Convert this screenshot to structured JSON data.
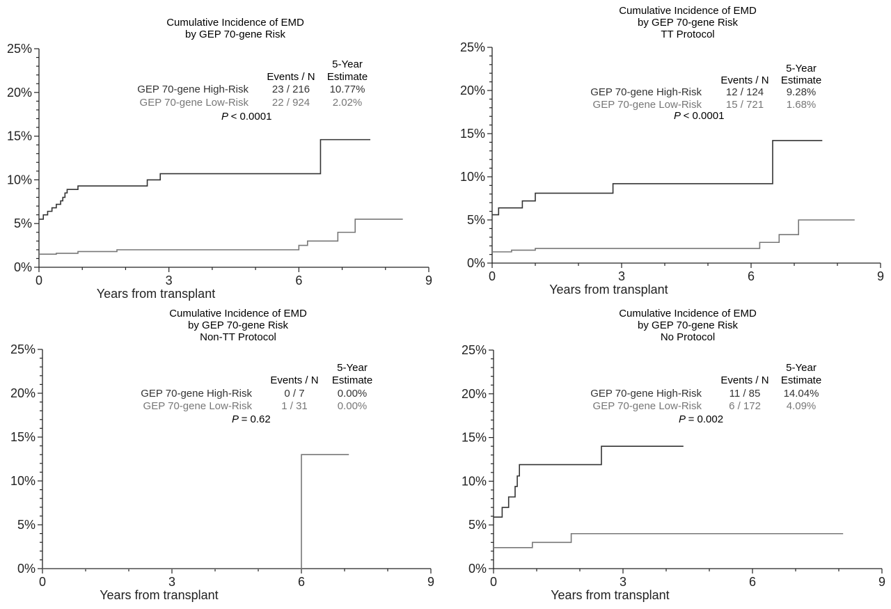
{
  "colors": {
    "high": "#333333",
    "low": "#777777",
    "axis": "#222222"
  },
  "chart_data": [
    {
      "type": "line",
      "title": [
        "Cumulative Incidence of EMD",
        "by GEP 70-gene Risk"
      ],
      "xlabel": "Years from transplant",
      "ylabel": "",
      "xlim": [
        0,
        9
      ],
      "ylim": [
        0,
        25
      ],
      "xticks": [
        "0",
        "3",
        "6",
        "9"
      ],
      "yticks": [
        "0%",
        "5%",
        "10%",
        "15%",
        "20%",
        "25%"
      ],
      "legend_header": {
        "events": "Events / N",
        "estimate_line1": "5-Year",
        "estimate_line2": "Estimate"
      },
      "legend": [
        {
          "label": "GEP 70-gene High-Risk",
          "events": "23 / 216",
          "estimate": "10.77%"
        },
        {
          "label": "GEP 70-gene Low-Risk",
          "events": "22 / 924",
          "estimate": "2.02%"
        }
      ],
      "p_label": "P",
      "p_value": "< 0.0001",
      "series": [
        {
          "name": "GEP 70-gene High-Risk",
          "x": [
            0,
            0.1,
            0.2,
            0.3,
            0.4,
            0.5,
            0.55,
            0.6,
            0.65,
            0.9,
            2.5,
            2.8,
            6.5,
            7.65
          ],
          "y": [
            5.5,
            6.0,
            6.4,
            6.8,
            7.2,
            7.6,
            8.0,
            8.5,
            8.9,
            9.3,
            10.0,
            10.7,
            14.6,
            14.6
          ]
        },
        {
          "name": "GEP 70-gene Low-Risk",
          "x": [
            0,
            0.4,
            0.9,
            1.8,
            6.0,
            6.2,
            6.9,
            7.3,
            8.4
          ],
          "y": [
            1.5,
            1.6,
            1.8,
            2.0,
            2.5,
            3.0,
            4.0,
            5.5,
            5.5
          ]
        }
      ]
    },
    {
      "type": "line",
      "title": [
        "Cumulative Incidence of EMD",
        "by GEP 70-gene Risk",
        "TT Protocol"
      ],
      "xlabel": "Years from transplant",
      "ylabel": "",
      "xlim": [
        0,
        9
      ],
      "ylim": [
        0,
        25
      ],
      "xticks": [
        "0",
        "3",
        "6",
        "9"
      ],
      "yticks": [
        "0%",
        "5%",
        "10%",
        "15%",
        "20%",
        "25%"
      ],
      "legend_header": {
        "events": "Events / N",
        "estimate_line1": "5-Year",
        "estimate_line2": "Estimate"
      },
      "legend": [
        {
          "label": "GEP 70-gene High-Risk",
          "events": "12 / 124",
          "estimate": "9.28%"
        },
        {
          "label": "GEP 70-gene Low-Risk",
          "events": "15 / 721",
          "estimate": "1.68%"
        }
      ],
      "p_label": "P",
      "p_value": "< 0.0001",
      "series": [
        {
          "name": "GEP 70-gene High-Risk",
          "x": [
            0,
            0.15,
            0.7,
            1.0,
            2.8,
            6.5,
            7.65
          ],
          "y": [
            5.6,
            6.4,
            7.2,
            8.1,
            9.2,
            14.2,
            14.2
          ]
        },
        {
          "name": "GEP 70-gene Low-Risk",
          "x": [
            0,
            0.45,
            1.0,
            6.2,
            6.65,
            7.1,
            8.4
          ],
          "y": [
            1.3,
            1.5,
            1.7,
            2.4,
            3.3,
            5.0,
            5.0
          ]
        }
      ]
    },
    {
      "type": "line",
      "title": [
        "Cumulative Incidence of EMD",
        "by GEP 70-gene Risk",
        "Non-TT Protocol"
      ],
      "xlabel": "Years from transplant",
      "ylabel": "",
      "xlim": [
        0,
        9
      ],
      "ylim": [
        0,
        25
      ],
      "xticks": [
        "0",
        "3",
        "6",
        "9"
      ],
      "yticks": [
        "0%",
        "5%",
        "10%",
        "15%",
        "20%",
        "25%"
      ],
      "legend_header": {
        "events": "Events / N",
        "estimate_line1": "5-Year",
        "estimate_line2": "Estimate"
      },
      "legend": [
        {
          "label": "GEP 70-gene High-Risk",
          "events": "0 / 7",
          "estimate": "0.00%"
        },
        {
          "label": "GEP 70-gene Low-Risk",
          "events": "1 / 31",
          "estimate": "0.00%"
        }
      ],
      "p_label": "P",
      "p_value": "= 0.62",
      "series": [
        {
          "name": "GEP 70-gene High-Risk",
          "x": [
            0,
            6.0
          ],
          "y": [
            0,
            0
          ]
        },
        {
          "name": "GEP 70-gene Low-Risk",
          "x": [
            0,
            6.0,
            7.1
          ],
          "y": [
            0,
            13.0,
            13.0
          ]
        }
      ]
    },
    {
      "type": "line",
      "title": [
        "Cumulative Incidence of EMD",
        "by GEP 70-gene Risk",
        "No Protocol"
      ],
      "xlabel": "Years from transplant",
      "ylabel": "",
      "xlim": [
        0,
        9
      ],
      "ylim": [
        0,
        25
      ],
      "xticks": [
        "0",
        "3",
        "6",
        "9"
      ],
      "yticks": [
        "0%",
        "5%",
        "10%",
        "15%",
        "20%",
        "25%"
      ],
      "legend_header": {
        "events": "Events / N",
        "estimate_line1": "5-Year",
        "estimate_line2": "Estimate"
      },
      "legend": [
        {
          "label": "GEP 70-gene High-Risk",
          "events": "11 / 85",
          "estimate": "14.04%"
        },
        {
          "label": "GEP 70-gene Low-Risk",
          "events": "6 / 172",
          "estimate": "4.09%"
        }
      ],
      "p_label": "P",
      "p_value": "= 0.002",
      "series": [
        {
          "name": "GEP 70-gene High-Risk",
          "x": [
            0,
            0.2,
            0.35,
            0.5,
            0.55,
            0.6,
            2.5,
            4.4
          ],
          "y": [
            5.9,
            7.0,
            8.2,
            9.4,
            10.6,
            11.9,
            14.0,
            14.0
          ]
        },
        {
          "name": "GEP 70-gene Low-Risk",
          "x": [
            0,
            0.9,
            1.8,
            8.1
          ],
          "y": [
            2.4,
            3.0,
            4.0,
            4.0
          ]
        }
      ]
    }
  ]
}
